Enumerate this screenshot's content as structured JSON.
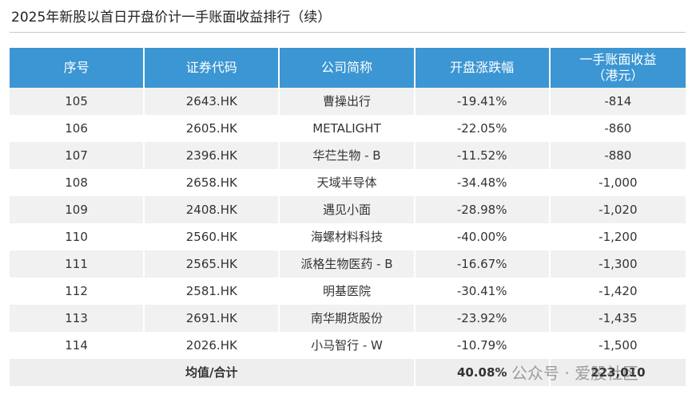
{
  "header": {
    "title": "2025年新股以首日开盘价计一手账面收益排行（续）"
  },
  "table": {
    "columns": [
      "序号",
      "证券代码",
      "公司简称",
      "开盘涨跌幅",
      "一手账面收益\n（港元）"
    ],
    "rows": [
      [
        "105",
        "2643.HK",
        "曹操出行",
        "-19.41%",
        "-814"
      ],
      [
        "106",
        "2605.HK",
        "METALIGHT",
        "-22.05%",
        "-860"
      ],
      [
        "107",
        "2396.HK",
        "华芢生物 - B",
        "-11.52%",
        "-880"
      ],
      [
        "108",
        "2658.HK",
        "天域半导体",
        "-34.48%",
        "-1,000"
      ],
      [
        "109",
        "2408.HK",
        "遇见小面",
        "-28.98%",
        "-1,020"
      ],
      [
        "110",
        "2560.HK",
        "海螺材料科技",
        "-40.00%",
        "-1,200"
      ],
      [
        "111",
        "2565.HK",
        "派格生物医药 - B",
        "-16.67%",
        "-1,300"
      ],
      [
        "112",
        "2581.HK",
        "明基医院",
        "-30.41%",
        "-1,420"
      ],
      [
        "113",
        "2691.HK",
        "南华期货股份",
        "-23.92%",
        "-1,435"
      ],
      [
        "114",
        "2026.HK",
        "小马智行 - W",
        "-10.79%",
        "-1,500"
      ]
    ],
    "footer": {
      "label": "均值/合计",
      "change": "40.08%",
      "total": "223,010"
    }
  },
  "watermark": "公众号 · 爱股社区"
}
